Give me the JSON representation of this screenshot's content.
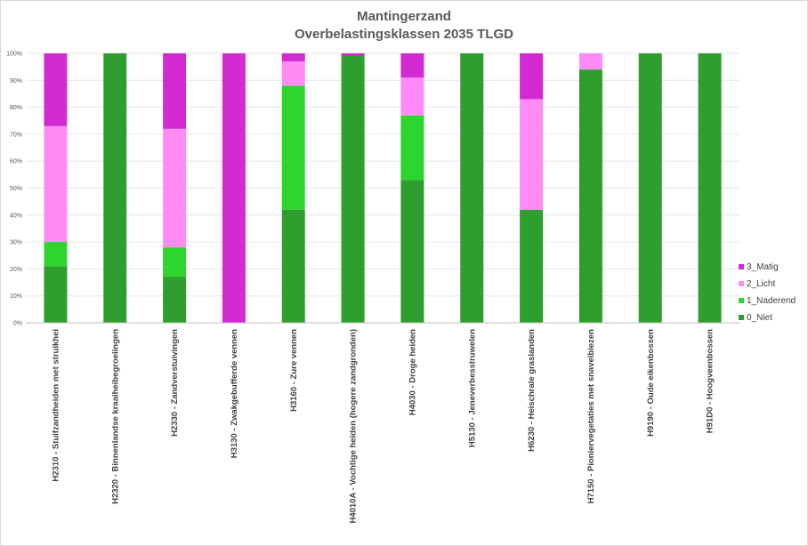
{
  "chart_data": {
    "type": "bar",
    "stacked": true,
    "percent": true,
    "title": "Mantingerzand",
    "subtitle": "Overbelastingsklassen 2035 TLGD",
    "xlabel": "",
    "ylabel": "",
    "ylim": [
      0,
      100
    ],
    "yticks": [
      "0%",
      "10%",
      "20%",
      "30%",
      "40%",
      "50%",
      "60%",
      "70%",
      "80%",
      "90%",
      "100%"
    ],
    "grid": true,
    "legend_position": "right",
    "categories": [
      "H2310 - Stuifzandheiden met struikhei",
      "H2320 - Binnenlandse kraaiheibegroeiingen",
      "H2330 - Zandverstuivingen",
      "H3130 - Zwakgebufferde vennen",
      "H3160 - Zure vennen",
      "H4010A - Vochtige heiden (hogere zandgronden)",
      "H4030 - Droge heiden",
      "H5130 - Jeneverbesstruwelen",
      "H6230 - Heischrale graslanden",
      "H7150 - Pioniervegetaties met snavelbiezen",
      "H9190 - Oude eikenbossen",
      "H91D0 - Hoogveenbossen"
    ],
    "series": [
      {
        "name": "0_Niet",
        "color": "#2e9e2e",
        "values": [
          21,
          100,
          17,
          0,
          42,
          99,
          53,
          100,
          42,
          94,
          100,
          100
        ]
      },
      {
        "name": "1_Naderend",
        "color": "#2ed52e",
        "values": [
          9,
          0,
          11,
          0,
          46,
          0,
          24,
          0,
          0,
          0,
          0,
          0
        ]
      },
      {
        "name": "2_Licht",
        "color": "#ff8cf5",
        "values": [
          43,
          0,
          44,
          0,
          9,
          0,
          14,
          0,
          41,
          6,
          0,
          0
        ]
      },
      {
        "name": "3_Matig",
        "color": "#d42ad4",
        "values": [
          27,
          0,
          28,
          100,
          3,
          1,
          9,
          0,
          17,
          0,
          0,
          0
        ]
      }
    ],
    "legend_order": [
      "3_Matig",
      "2_Licht",
      "1_Naderend",
      "0_Niet"
    ]
  }
}
